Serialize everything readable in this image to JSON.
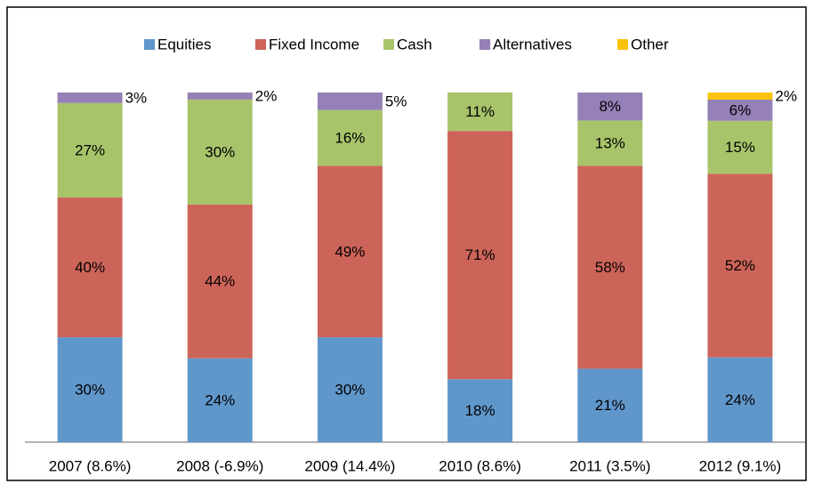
{
  "chart_data": {
    "type": "stacked_bar",
    "stacking": "percent",
    "categories": [
      "2007 (8.6%)",
      "2008 (-6.9%)",
      "2009 (14.4%)",
      "2010 (8.6%)",
      "2011 (3.5%)",
      "2012 (9.1%)"
    ],
    "series": [
      {
        "name": "Equities",
        "color": "#6097cb",
        "values": [
          30,
          24,
          30,
          18,
          21,
          24
        ],
        "value_labels": [
          "30%",
          "24%",
          "30%",
          "18%",
          "21%",
          "24%"
        ]
      },
      {
        "name": "Fixed Income",
        "color": "#cd6459",
        "values": [
          40,
          44,
          49,
          71,
          58,
          52
        ],
        "value_labels": [
          "40%",
          "44%",
          "49%",
          "71%",
          "58%",
          "52%"
        ]
      },
      {
        "name": "Cash",
        "color": "#a8c46a",
        "values": [
          27,
          30,
          16,
          11,
          13,
          15
        ],
        "value_labels": [
          "27%",
          "30%",
          "16%",
          "11%",
          "13%",
          "15%"
        ]
      },
      {
        "name": "Alternatives",
        "color": "#9580b7",
        "values": [
          3,
          2,
          5,
          null,
          8,
          6
        ],
        "value_labels": [
          "3%",
          "2%",
          "5%",
          null,
          "8%",
          "6%"
        ]
      },
      {
        "name": "Other",
        "color": "#fbc20a",
        "values": [
          null,
          null,
          null,
          null,
          null,
          2
        ],
        "value_labels": [
          null,
          null,
          null,
          null,
          null,
          "2%"
        ]
      }
    ],
    "legend": "top"
  }
}
